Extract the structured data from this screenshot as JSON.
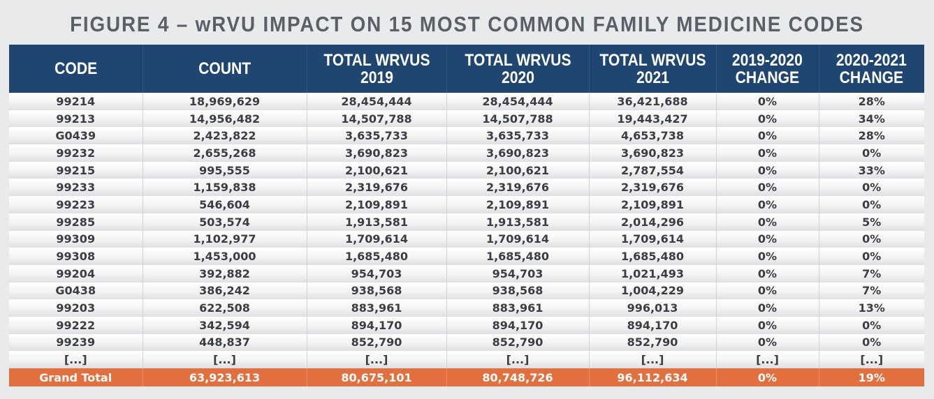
{
  "chart_data": {
    "type": "table",
    "title": "FIGURE 4 – wRVU IMPACT ON 15 MOST COMMON FAMILY MEDICINE CODES",
    "columns": [
      "CODE",
      "COUNT",
      "TOTAL WRVUS\n2019",
      "TOTAL WRVUS\n2020",
      "TOTAL WRVUS\n2021",
      "2019-2020\nCHANGE",
      "2020-2021\nCHANGE"
    ],
    "rows": [
      [
        "99214",
        "18,969,629",
        "28,454,444",
        "28,454,444",
        "36,421,688",
        "0%",
        "28%"
      ],
      [
        "99213",
        "14,956,482",
        "14,507,788",
        "14,507,788",
        "19,443,427",
        "0%",
        "34%"
      ],
      [
        "G0439",
        "2,423,822",
        "3,635,733",
        "3,635,733",
        "4,653,738",
        "0%",
        "28%"
      ],
      [
        "99232",
        "2,655,268",
        "3,690,823",
        "3,690,823",
        "3,690,823",
        "0%",
        "0%"
      ],
      [
        "99215",
        "995,555",
        "2,100,621",
        "2,100,621",
        "2,787,554",
        "0%",
        "33%"
      ],
      [
        "99233",
        "1,159,838",
        "2,319,676",
        "2,319,676",
        "2,319,676",
        "0%",
        "0%"
      ],
      [
        "99223",
        "546,604",
        "2,109,891",
        "2,109,891",
        "2,109,891",
        "0%",
        "0%"
      ],
      [
        "99285",
        "503,574",
        "1,913,581",
        "1,913,581",
        "2,014,296",
        "0%",
        "5%"
      ],
      [
        "99309",
        "1,102,977",
        "1,709,614",
        "1,709,614",
        "1,709,614",
        "0%",
        "0%"
      ],
      [
        "99308",
        "1,453,000",
        "1,685,480",
        "1,685,480",
        "1,685,480",
        "0%",
        "0%"
      ],
      [
        "99204",
        "392,882",
        "954,703",
        "954,703",
        "1,021,493",
        "0%",
        "7%"
      ],
      [
        "G0438",
        "386,242",
        "938,568",
        "938,568",
        "1,004,229",
        "0%",
        "7%"
      ],
      [
        "99203",
        "622,508",
        "883,961",
        "883,961",
        "996,013",
        "0%",
        "13%"
      ],
      [
        "99222",
        "342,594",
        "894,170",
        "894,170",
        "894,170",
        "0%",
        "0%"
      ],
      [
        "99239",
        "448,837",
        "852,790",
        "852,790",
        "852,790",
        "0%",
        "0%"
      ],
      [
        "[...]",
        "[...]",
        "[...]",
        "[...]",
        "[...]",
        "[...]",
        "[...]"
      ]
    ],
    "total_row": [
      "Grand Total",
      "63,923,613",
      "80,675,101",
      "80,748,726",
      "96,112,634",
      "0%",
      "19%"
    ]
  },
  "colors": {
    "header_bg": "#1f4671",
    "total_bg": "#e2703e",
    "title_text": "#5a6068"
  }
}
